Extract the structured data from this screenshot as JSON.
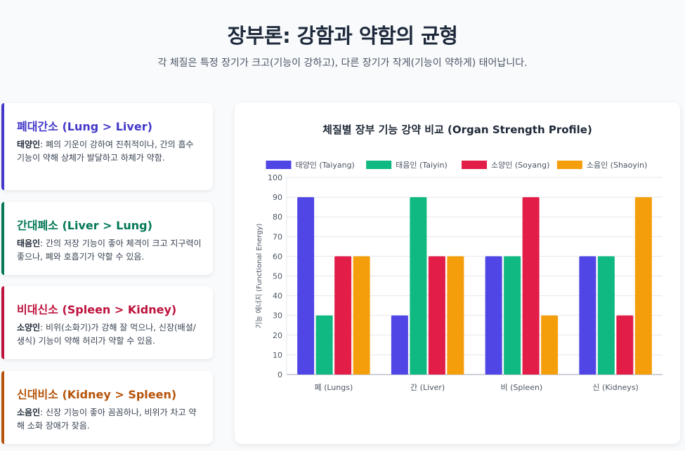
{
  "header": {
    "title": "장부론: 강함과 약함의 균형",
    "subtitle": "각 체질은 특정 장기가 크고(기능이 강하고), 다른 장기가 작게(기능이 약하게) 태어납니다."
  },
  "cards": [
    {
      "title": "폐대간소 (Lung > Liver)",
      "label": "태양인",
      "text": ": 폐의 기운이 강하여 진취적이나, 간의 흡수 기능이 약해 상체가 발달하고 하체가 약함.",
      "color": "#4338ca"
    },
    {
      "title": "간대폐소 (Liver > Lung)",
      "label": "태음인",
      "text": ": 간의 저장 기능이 좋아 체격이 크고 지구력이 좋으나, 폐와 호흡기가 약할 수 있음.",
      "color": "#047857"
    },
    {
      "title": "비대신소 (Spleen > Kidney)",
      "label": "소양인",
      "text": ": 비위(소화기)가 강해 잘 먹으나, 신장(배설/생식) 기능이 약해 허리가 약할 수 있음.",
      "color": "#be123c"
    },
    {
      "title": "신대비소 (Kidney > Spleen)",
      "label": "소음인",
      "text": ": 신장 기능이 좋아 꼼꼼하나, 비위가 차고 약해 소화 장애가 잦음.",
      "color": "#b45309"
    }
  ],
  "chart_data": {
    "type": "bar",
    "title": "체질별 장부 기능 강약 비교 (Organ Strength Profile)",
    "xlabel": "",
    "ylabel": "기능 에너지 (Functional Energy)",
    "ylim": [
      0,
      100
    ],
    "yticks": [
      0,
      10,
      20,
      30,
      40,
      50,
      60,
      70,
      80,
      90,
      100
    ],
    "grid": true,
    "legend_position": "top",
    "categories": [
      "폐 (Lungs)",
      "간 (Liver)",
      "비 (Spleen)",
      "신 (Kidneys)"
    ],
    "series": [
      {
        "name": "태양인 (Taiyang)",
        "color": "#4f46e5",
        "values": [
          90,
          30,
          60,
          60
        ]
      },
      {
        "name": "태음인 (Taiyin)",
        "color": "#10b981",
        "values": [
          30,
          90,
          60,
          60
        ]
      },
      {
        "name": "소양인 (Soyang)",
        "color": "#e11d48",
        "values": [
          60,
          60,
          90,
          30
        ]
      },
      {
        "name": "소음인 (Shaoyin)",
        "color": "#f59e0b",
        "values": [
          60,
          60,
          30,
          90
        ]
      }
    ]
  }
}
